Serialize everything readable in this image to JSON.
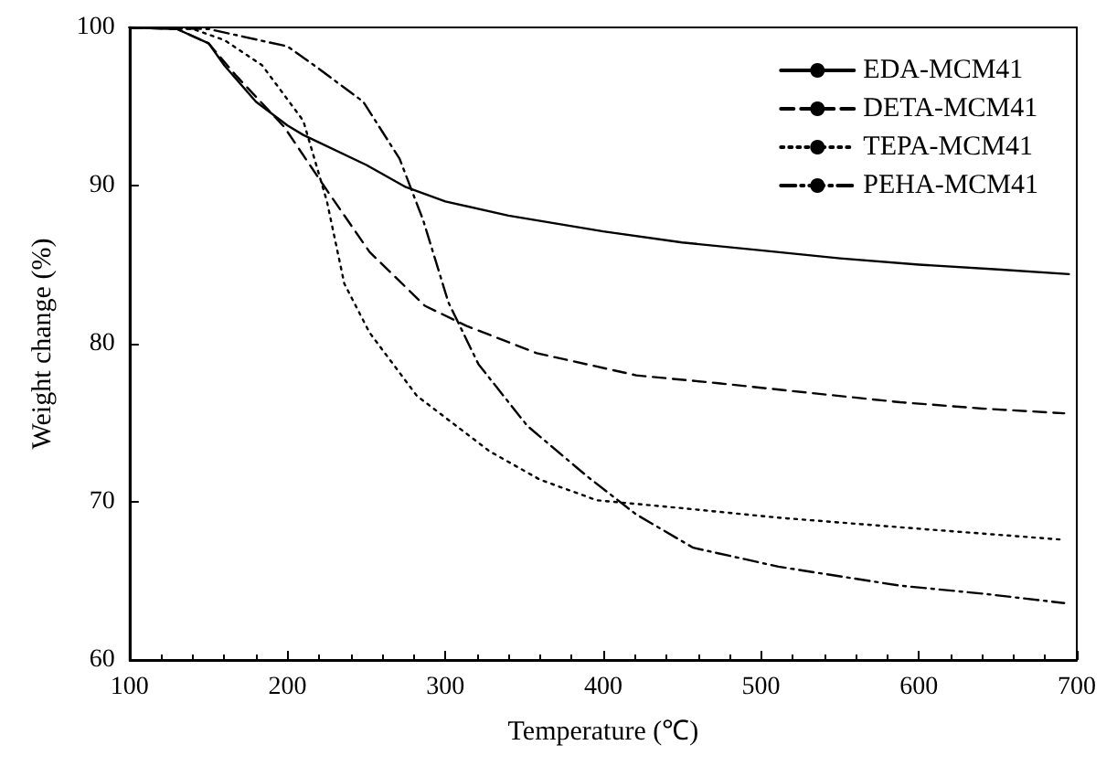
{
  "chart_data": {
    "type": "line",
    "xlabel": "Temperature (℃)",
    "ylabel": "Weight change (%)",
    "xlim": [
      100,
      700
    ],
    "xticks": [
      100,
      200,
      300,
      400,
      500,
      600,
      700
    ],
    "ylim": [
      60,
      100
    ],
    "yticks": [
      60,
      70,
      80,
      90,
      100
    ],
    "grid": false,
    "legend": "top right",
    "marker": "none",
    "series": [
      {
        "name": "EDA-MCM41",
        "color": "#000000",
        "line_style": "solid",
        "x": [
          100,
          130,
          150,
          160,
          180,
          200,
          210,
          250,
          275,
          300,
          340,
          400,
          450,
          500,
          550,
          600,
          650,
          695
        ],
        "values": [
          100,
          99.9,
          99.0,
          97.6,
          95.3,
          93.8,
          93.2,
          91.3,
          89.9,
          89.0,
          88.1,
          87.1,
          86.4,
          85.9,
          85.4,
          85.0,
          84.7,
          84.4
        ]
      },
      {
        "name": "DETA-MCM41",
        "color": "#000000",
        "line_style": "dashed",
        "x": [
          100,
          130,
          150,
          167,
          198,
          225,
          252,
          287,
          314,
          358,
          421,
          473,
          530,
          588,
          640,
          692
        ],
        "values": [
          100,
          99.9,
          99.0,
          97.0,
          93.7,
          89.7,
          85.8,
          82.4,
          81.1,
          79.4,
          78.0,
          77.5,
          76.9,
          76.3,
          75.9,
          75.6
        ]
      },
      {
        "name": "TEPA-MCM41",
        "color": "#000000",
        "line_style": "dotted",
        "x": [
          100,
          140,
          160,
          184,
          210,
          225,
          236,
          252,
          282,
          328,
          360,
          396,
          450,
          511,
          600,
          692
        ],
        "values": [
          100,
          99.9,
          99.2,
          97.6,
          94.1,
          89.0,
          83.8,
          80.7,
          76.7,
          73.2,
          71.4,
          70.1,
          69.6,
          69.0,
          68.3,
          67.6
        ]
      },
      {
        "name": "PEHA-MCM41",
        "color": "#000000",
        "line_style": "dashed-dot",
        "x": [
          100,
          150,
          200,
          217,
          248,
          271,
          286,
          302,
          321,
          352,
          390,
          421,
          457,
          511,
          588,
          640,
          692
        ],
        "values": [
          100,
          99.9,
          98.8,
          97.6,
          95.3,
          91.7,
          87.8,
          82.6,
          78.7,
          74.8,
          71.6,
          69.2,
          67.1,
          65.9,
          64.7,
          64.2,
          63.6
        ]
      }
    ]
  }
}
